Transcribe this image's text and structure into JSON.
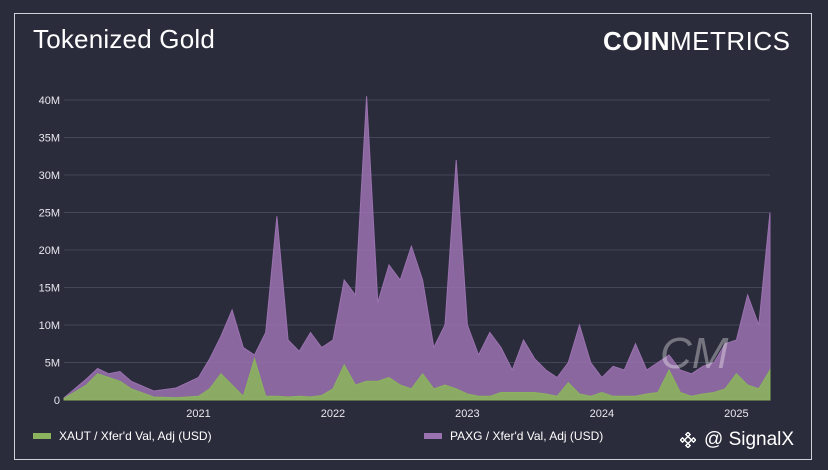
{
  "title": "Tokenized Gold",
  "brand": {
    "bold": "COIN",
    "light": "METRICS"
  },
  "watermark": {
    "text": "@ SignalX",
    "icon": "binance-diamond-icon"
  },
  "chart_data": {
    "type": "area",
    "title": "Tokenized Gold",
    "x_start": "2020-01",
    "x_end": "2025-04",
    "xticks": [
      "2021",
      "2022",
      "2023",
      "2024",
      "2025"
    ],
    "yticks": [
      "0",
      "5M",
      "10M",
      "15M",
      "20M",
      "25M",
      "30M",
      "35M",
      "40M"
    ],
    "ylim": [
      0,
      42000000
    ],
    "grid": true,
    "legend_position": "bottom",
    "series": [
      {
        "name": "PAXG / Xfer'd Val, Adj (USD)",
        "color": "#9b72b0",
        "points": [
          [
            "2020-01",
            0.3
          ],
          [
            "2020-03",
            2.8
          ],
          [
            "2020-04",
            4.2
          ],
          [
            "2020-05",
            3.5
          ],
          [
            "2020-06",
            3.8
          ],
          [
            "2020-07",
            2.5
          ],
          [
            "2020-09",
            1.2
          ],
          [
            "2020-11",
            1.6
          ],
          [
            "2021-01",
            3.0
          ],
          [
            "2021-02",
            5.5
          ],
          [
            "2021-03",
            8.5
          ],
          [
            "2021-04",
            12.0
          ],
          [
            "2021-05",
            7.0
          ],
          [
            "2021-06",
            6.0
          ],
          [
            "2021-07",
            9.0
          ],
          [
            "2021-08",
            24.5
          ],
          [
            "2021-09",
            8.0
          ],
          [
            "2021-10",
            6.5
          ],
          [
            "2021-11",
            9.0
          ],
          [
            "2021-12",
            7.0
          ],
          [
            "2022-01",
            8.0
          ],
          [
            "2022-02",
            16.0
          ],
          [
            "2022-03",
            14.0
          ],
          [
            "2022-04",
            40.5
          ],
          [
            "2022-05",
            13.0
          ],
          [
            "2022-06",
            18.0
          ],
          [
            "2022-07",
            16.0
          ],
          [
            "2022-08",
            20.5
          ],
          [
            "2022-09",
            16.0
          ],
          [
            "2022-10",
            7.0
          ],
          [
            "2022-11",
            10.0
          ],
          [
            "2022-12",
            32.0
          ],
          [
            "2023-01",
            10.0
          ],
          [
            "2023-02",
            6.0
          ],
          [
            "2023-03",
            9.0
          ],
          [
            "2023-04",
            7.0
          ],
          [
            "2023-05",
            4.0
          ],
          [
            "2023-06",
            8.0
          ],
          [
            "2023-07",
            5.5
          ],
          [
            "2023-08",
            4.0
          ],
          [
            "2023-09",
            3.0
          ],
          [
            "2023-10",
            5.0
          ],
          [
            "2023-11",
            10.0
          ],
          [
            "2023-12",
            5.0
          ],
          [
            "2024-01",
            3.0
          ],
          [
            "2024-02",
            4.5
          ],
          [
            "2024-03",
            4.0
          ],
          [
            "2024-04",
            7.5
          ],
          [
            "2024-05",
            4.0
          ],
          [
            "2024-06",
            5.0
          ],
          [
            "2024-07",
            6.0
          ],
          [
            "2024-08",
            4.0
          ],
          [
            "2024-09",
            3.5
          ],
          [
            "2024-10",
            4.5
          ],
          [
            "2024-11",
            5.0
          ],
          [
            "2024-12",
            7.5
          ],
          [
            "2025-01",
            8.0
          ],
          [
            "2025-02",
            14.0
          ],
          [
            "2025-03",
            10.0
          ],
          [
            "2025-04",
            25.0
          ]
        ]
      },
      {
        "name": "XAUT / Xfer'd Val, Adj (USD)",
        "color": "#8bb35e",
        "points": [
          [
            "2020-01",
            0.2
          ],
          [
            "2020-03",
            2.0
          ],
          [
            "2020-04",
            3.5
          ],
          [
            "2020-05",
            3.0
          ],
          [
            "2020-06",
            2.5
          ],
          [
            "2020-07",
            1.5
          ],
          [
            "2020-09",
            0.4
          ],
          [
            "2020-11",
            0.3
          ],
          [
            "2021-01",
            0.5
          ],
          [
            "2021-02",
            1.5
          ],
          [
            "2021-03",
            3.5
          ],
          [
            "2021-04",
            2.0
          ],
          [
            "2021-05",
            0.5
          ],
          [
            "2021-06",
            5.5
          ],
          [
            "2021-07",
            0.5
          ],
          [
            "2021-08",
            0.5
          ],
          [
            "2021-09",
            0.4
          ],
          [
            "2021-10",
            0.5
          ],
          [
            "2021-11",
            0.4
          ],
          [
            "2021-12",
            0.6
          ],
          [
            "2022-01",
            1.5
          ],
          [
            "2022-02",
            4.7
          ],
          [
            "2022-03",
            2.0
          ],
          [
            "2022-04",
            2.5
          ],
          [
            "2022-05",
            2.5
          ],
          [
            "2022-06",
            3.0
          ],
          [
            "2022-07",
            2.0
          ],
          [
            "2022-08",
            1.5
          ],
          [
            "2022-09",
            3.5
          ],
          [
            "2022-10",
            1.5
          ],
          [
            "2022-11",
            2.0
          ],
          [
            "2022-12",
            1.5
          ],
          [
            "2023-01",
            0.8
          ],
          [
            "2023-02",
            0.5
          ],
          [
            "2023-03",
            0.5
          ],
          [
            "2023-04",
            1.0
          ],
          [
            "2023-05",
            1.0
          ],
          [
            "2023-06",
            1.0
          ],
          [
            "2023-07",
            1.0
          ],
          [
            "2023-08",
            0.8
          ],
          [
            "2023-09",
            0.5
          ],
          [
            "2023-10",
            2.3
          ],
          [
            "2023-11",
            0.8
          ],
          [
            "2023-12",
            0.5
          ],
          [
            "2024-01",
            1.0
          ],
          [
            "2024-02",
            0.5
          ],
          [
            "2024-03",
            0.5
          ],
          [
            "2024-04",
            0.5
          ],
          [
            "2024-05",
            0.8
          ],
          [
            "2024-06",
            1.0
          ],
          [
            "2024-07",
            4.0
          ],
          [
            "2024-08",
            1.0
          ],
          [
            "2024-09",
            0.5
          ],
          [
            "2024-10",
            0.8
          ],
          [
            "2024-11",
            1.0
          ],
          [
            "2024-12",
            1.5
          ],
          [
            "2025-01",
            3.5
          ],
          [
            "2025-02",
            2.0
          ],
          [
            "2025-03",
            1.5
          ],
          [
            "2025-04",
            4.0
          ]
        ]
      }
    ]
  }
}
